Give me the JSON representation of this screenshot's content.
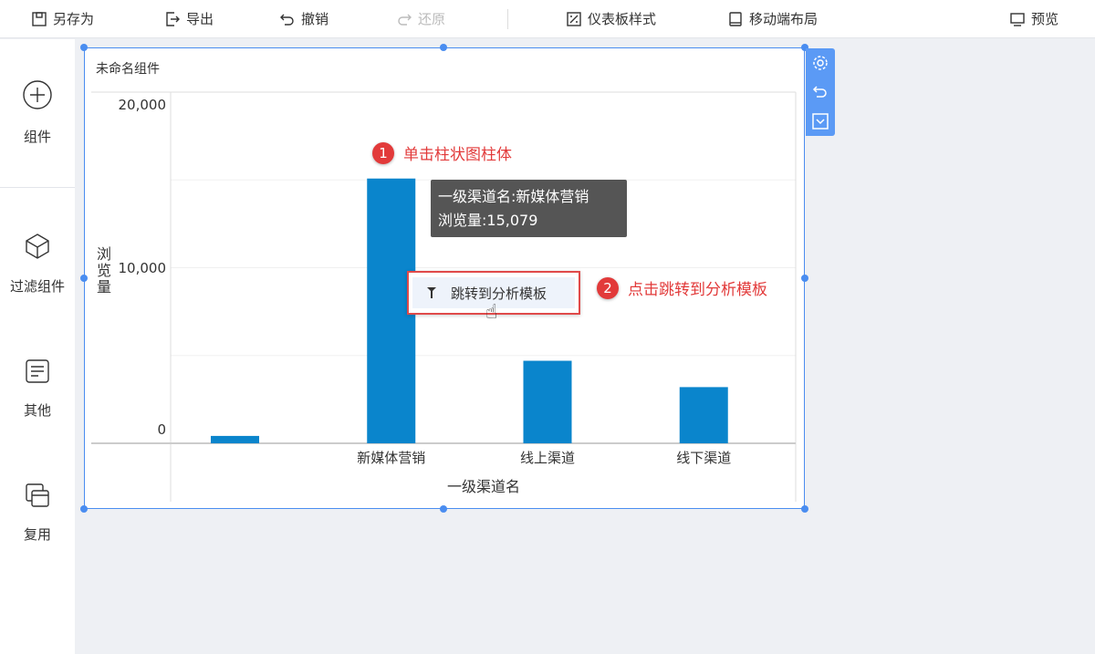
{
  "toolbar": {
    "save_as": "另存为",
    "export": "导出",
    "undo": "撤销",
    "redo": "还原",
    "dashboard_style": "仪表板样式",
    "mobile_layout": "移动端布局",
    "preview": "预览"
  },
  "sidebar": {
    "items": [
      {
        "label": "组件",
        "icon": "plus-circle-icon"
      },
      {
        "label": "过滤组件",
        "icon": "cube-icon"
      },
      {
        "label": "其他",
        "icon": "note-icon"
      },
      {
        "label": "复用",
        "icon": "copy-icon"
      }
    ]
  },
  "widget": {
    "title": "未命名组件"
  },
  "tooltip": {
    "line1": "一级渠道名:新媒体营销",
    "line2": "浏览量:15,079"
  },
  "context_menu": {
    "item": "跳转到分析模板"
  },
  "annotations": {
    "step1": {
      "num": "1",
      "text": "单击柱状图柱体"
    },
    "step2": {
      "num": "2",
      "text": "点击跳转到分析模板"
    }
  },
  "colors": {
    "bar": "#0a85cc",
    "accent": "#4a8df0",
    "annotation": "#e23a3a"
  },
  "chart_data": {
    "type": "bar",
    "categories": [
      "",
      "新媒体营销",
      "线上渠道",
      "线下渠道"
    ],
    "values": [
      420,
      15079,
      4700,
      3200
    ],
    "xlabel": "一级渠道名",
    "ylabel": "浏览量",
    "yticks": [
      "0",
      "10,000",
      "20,000"
    ],
    "ylim": [
      0,
      20000
    ],
    "grid": true
  }
}
